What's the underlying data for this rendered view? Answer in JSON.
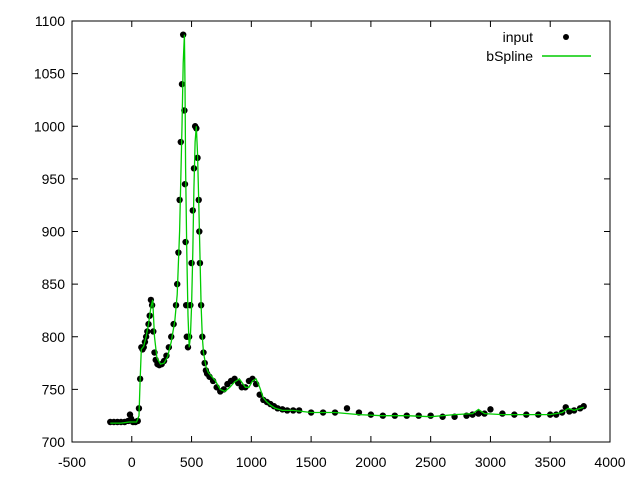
{
  "chart_data": {
    "type": "scatter",
    "title": "",
    "xlabel": "",
    "ylabel": "",
    "xlim": [
      -500,
      4000
    ],
    "ylim": [
      700,
      1100
    ],
    "xticks": [
      -500,
      0,
      500,
      1000,
      1500,
      2000,
      2500,
      3000,
      3500,
      4000
    ],
    "yticks": [
      700,
      750,
      800,
      850,
      900,
      950,
      1000,
      1050,
      1100
    ],
    "grid": false,
    "legend_position": "top-right",
    "colors": {
      "input": "#000000",
      "bSpline": "#00cc00"
    },
    "series": [
      {
        "name": "input",
        "type": "scatter",
        "x": [
          -180,
          -150,
          -120,
          -90,
          -60,
          -30,
          -15,
          -5,
          10,
          30,
          50,
          60,
          70,
          80,
          90,
          100,
          110,
          120,
          130,
          140,
          150,
          160,
          170,
          180,
          190,
          200,
          215,
          230,
          250,
          270,
          290,
          310,
          330,
          350,
          370,
          380,
          390,
          400,
          410,
          420,
          430,
          440,
          445,
          450,
          455,
          460,
          470,
          480,
          490,
          500,
          510,
          520,
          530,
          540,
          550,
          560,
          565,
          570,
          580,
          590,
          600,
          610,
          620,
          630,
          650,
          680,
          710,
          740,
          770,
          800,
          830,
          860,
          890,
          920,
          950,
          980,
          1010,
          1040,
          1070,
          1100,
          1130,
          1160,
          1190,
          1220,
          1260,
          1300,
          1350,
          1400,
          1500,
          1600,
          1700,
          1800,
          1900,
          2000,
          2100,
          2200,
          2300,
          2400,
          2500,
          2600,
          2700,
          2800,
          2850,
          2900,
          2950,
          3000,
          3100,
          3200,
          3300,
          3400,
          3500,
          3550,
          3600,
          3630,
          3660,
          3700,
          3750,
          3780
        ],
        "y": [
          719,
          719,
          719,
          719,
          719,
          720,
          726,
          722,
          719,
          719,
          720,
          732,
          760,
          790,
          788,
          790,
          795,
          800,
          805,
          812,
          820,
          835,
          830,
          805,
          785,
          778,
          774,
          773,
          774,
          777,
          782,
          790,
          800,
          812,
          830,
          850,
          880,
          930,
          985,
          1040,
          1087,
          1015,
          945,
          890,
          830,
          800,
          790,
          800,
          830,
          870,
          920,
          960,
          1000,
          998,
          970,
          930,
          900,
          870,
          830,
          800,
          785,
          775,
          768,
          765,
          762,
          758,
          752,
          748,
          750,
          755,
          758,
          760,
          756,
          752,
          752,
          758,
          760,
          755,
          745,
          740,
          738,
          736,
          734,
          732,
          731,
          730,
          730,
          730,
          728,
          728,
          728,
          732,
          728,
          726,
          725,
          725,
          725,
          725,
          725,
          724,
          724,
          725,
          726,
          727,
          727,
          731,
          727,
          726,
          726,
          726,
          726,
          726,
          728,
          733,
          729,
          730,
          732,
          734
        ]
      },
      {
        "name": "bSpline",
        "type": "line",
        "x": [
          -180,
          -90,
          -20,
          40,
          60,
          70,
          80,
          100,
          120,
          140,
          160,
          175,
          190,
          210,
          240,
          270,
          300,
          330,
          360,
          380,
          400,
          420,
          430,
          440,
          445,
          450,
          460,
          470,
          480,
          490,
          500,
          510,
          520,
          530,
          540,
          550,
          560,
          570,
          580,
          590,
          600,
          620,
          640,
          670,
          700,
          740,
          780,
          820,
          860,
          900,
          950,
          980,
          1010,
          1040,
          1070,
          1100,
          1130,
          1160,
          1200,
          1260,
          1350,
          1500,
          1700,
          1900,
          2100,
          2300,
          2500,
          2700,
          2850,
          2900,
          2950,
          3100,
          3300,
          3500,
          3600,
          3650,
          3700,
          3780
        ],
        "y": [
          718,
          718,
          719,
          719,
          725,
          758,
          788,
          791,
          800,
          812,
          828,
          835,
          800,
          780,
          774,
          775,
          781,
          795,
          815,
          840,
          900,
          1000,
          1060,
          1087,
          1040,
          960,
          880,
          820,
          790,
          800,
          830,
          880,
          940,
          985,
          1000,
          975,
          930,
          880,
          830,
          800,
          785,
          772,
          766,
          762,
          758,
          750,
          748,
          752,
          757,
          760,
          752,
          752,
          758,
          760,
          752,
          742,
          738,
          735,
          732,
          730,
          730,
          728,
          728,
          726,
          725,
          725,
          724,
          726,
          727,
          731,
          727,
          726,
          726,
          726,
          728,
          732,
          730,
          733
        ]
      }
    ]
  }
}
